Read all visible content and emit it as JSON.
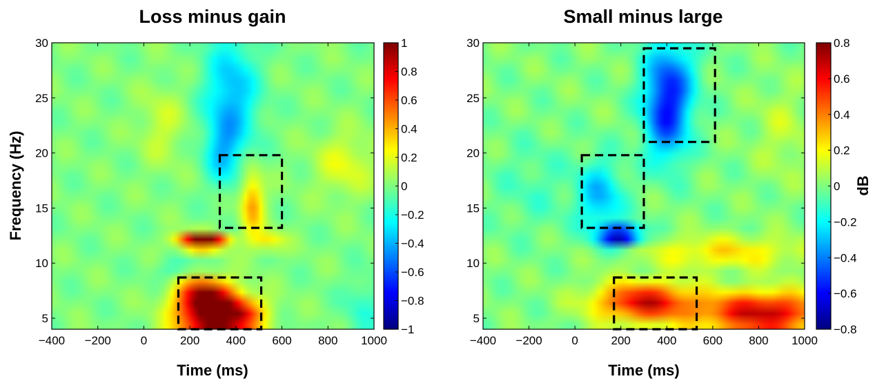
{
  "chart_data": [
    {
      "type": "heatmap",
      "title": "Loss minus gain",
      "xlabel": "Time (ms)",
      "ylabel": "Frequency (Hz)",
      "xlim": [
        -400,
        1000
      ],
      "ylim": [
        4,
        30
      ],
      "xticks": [
        -400,
        -200,
        0,
        200,
        400,
        600,
        800,
        1000
      ],
      "xtick_labels": [
        "−400",
        "−200",
        "0",
        "200",
        "400",
        "600",
        "800",
        "1000"
      ],
      "yticks": [
        5,
        10,
        15,
        20,
        25,
        30
      ],
      "ytick_labels": [
        "5",
        "10",
        "15",
        "20",
        "25",
        "30"
      ],
      "colorbar": {
        "range": [
          -1,
          1
        ],
        "label": "",
        "ticks": [
          -1,
          -0.8,
          -0.6,
          -0.4,
          -0.2,
          0,
          0.2,
          0.4,
          0.6,
          0.8,
          1
        ],
        "tick_labels": [
          "−1",
          "−0.8",
          "−0.6",
          "−0.4",
          "−0.2",
          "0",
          "0.2",
          "0.4",
          "0.6",
          "0.8",
          "1"
        ]
      },
      "blobs": [
        {
          "t": 300,
          "f": 5.0,
          "st": 110,
          "sf": 1.5,
          "v": 1.0
        },
        {
          "t": 260,
          "f": 7.2,
          "st": 80,
          "sf": 1.1,
          "v": 0.75
        },
        {
          "t": 420,
          "f": 5.5,
          "st": 80,
          "sf": 1.0,
          "v": 0.4
        },
        {
          "t": 230,
          "f": 12.0,
          "st": 65,
          "sf": 0.5,
          "v": 0.95
        },
        {
          "t": 320,
          "f": 12.0,
          "st": 50,
          "sf": 0.4,
          "v": 0.5
        },
        {
          "t": 470,
          "f": 15.5,
          "st": 35,
          "sf": 2.0,
          "v": 0.45
        },
        {
          "t": 540,
          "f": 12.0,
          "st": 50,
          "sf": 0.6,
          "v": 0.3
        },
        {
          "t": 870,
          "f": 19.0,
          "st": 90,
          "sf": 2.0,
          "v": 0.2
        },
        {
          "t": 80,
          "f": 22.5,
          "st": 70,
          "sf": 2.5,
          "v": 0.15
        },
        {
          "t": 380,
          "f": 25.0,
          "st": 80,
          "sf": 4.0,
          "v": -0.4
        },
        {
          "t": 340,
          "f": 20.0,
          "st": 50,
          "sf": 2.0,
          "v": -0.25
        },
        {
          "t": 150,
          "f": 9.5,
          "st": 70,
          "sf": 0.7,
          "v": -0.15
        },
        {
          "t": 950,
          "f": 6.0,
          "st": 60,
          "sf": 2.0,
          "v": -0.15
        }
      ],
      "rois": [
        {
          "t0": 150,
          "t1": 510,
          "f0": 4,
          "f1": 8.7
        },
        {
          "t0": 330,
          "t1": 600,
          "f0": 13.2,
          "f1": 19.8
        }
      ]
    },
    {
      "type": "heatmap",
      "title": "Small minus large",
      "xlabel": "Time (ms)",
      "ylabel": "",
      "xlim": [
        -400,
        1000
      ],
      "ylim": [
        4,
        30
      ],
      "xticks": [
        -400,
        -200,
        0,
        200,
        400,
        600,
        800,
        1000
      ],
      "xtick_labels": [
        "−400",
        "−200",
        "0",
        "200",
        "400",
        "600",
        "800",
        "1000"
      ],
      "yticks": [
        5,
        10,
        15,
        20,
        25,
        30
      ],
      "ytick_labels": [
        "5",
        "10",
        "15",
        "20",
        "25",
        "30"
      ],
      "colorbar": {
        "range": [
          -0.8,
          0.8
        ],
        "label": "dB",
        "ticks": [
          -0.8,
          -0.6,
          -0.4,
          -0.2,
          0,
          0.2,
          0.4,
          0.6,
          0.8
        ],
        "tick_labels": [
          "−0.8",
          "−0.6",
          "−0.4",
          "−0.2",
          "0",
          "0.2",
          "0.4",
          "0.6",
          "0.8"
        ]
      },
      "blobs": [
        {
          "t": 300,
          "f": 6.5,
          "st": 150,
          "sf": 1.2,
          "v": 0.65
        },
        {
          "t": 820,
          "f": 5.5,
          "st": 200,
          "sf": 1.3,
          "v": 0.7
        },
        {
          "t": 650,
          "f": 11.0,
          "st": 250,
          "sf": 1.0,
          "v": 0.25
        },
        {
          "t": 200,
          "f": 12.5,
          "st": 65,
          "sf": 0.6,
          "v": -0.8
        },
        {
          "t": 110,
          "f": 16.0,
          "st": 70,
          "sf": 2.3,
          "v": -0.3
        },
        {
          "t": 400,
          "f": 23.5,
          "st": 70,
          "sf": 3.0,
          "v": -0.5
        },
        {
          "t": 420,
          "f": 27.5,
          "st": 80,
          "sf": 2.5,
          "v": -0.25
        },
        {
          "t": -180,
          "f": 17.0,
          "st": 120,
          "sf": 3.0,
          "v": -0.08
        },
        {
          "t": 900,
          "f": 22.0,
          "st": 80,
          "sf": 3.0,
          "v": 0.1
        }
      ],
      "rois": [
        {
          "t0": 170,
          "t1": 530,
          "f0": 4,
          "f1": 8.7
        },
        {
          "t0": 30,
          "t1": 300,
          "f0": 13.2,
          "f1": 19.8
        },
        {
          "t0": 300,
          "t1": 610,
          "f0": 21.0,
          "f1": 29.5
        }
      ]
    }
  ]
}
